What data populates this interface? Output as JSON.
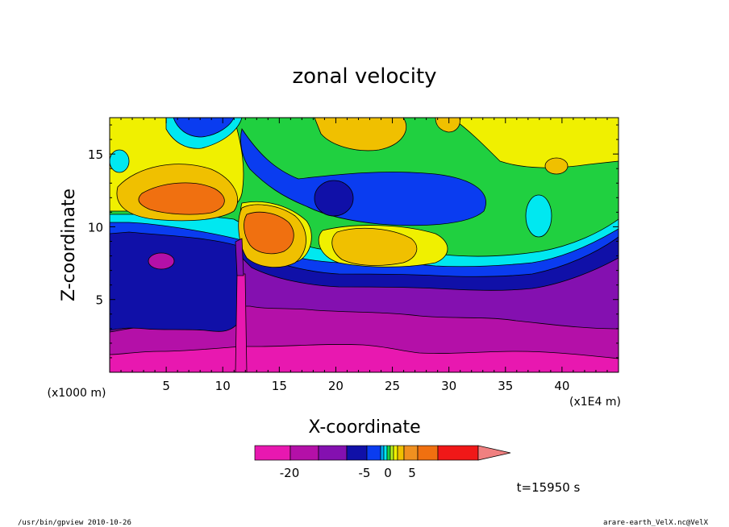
{
  "chart_data": {
    "type": "heatmap",
    "title": "zonal velocity",
    "xlabel": "X-coordinate",
    "ylabel": "Z-coordinate",
    "x_unit_label": "(x1E4 m)",
    "z_unit_label": "(x1000 m)",
    "xlim": [
      0,
      45
    ],
    "ylim": [
      0,
      17.5
    ],
    "x_ticks": [
      "5",
      "10",
      "15",
      "20",
      "25",
      "30",
      "35",
      "40"
    ],
    "x_tick_values": [
      5,
      10,
      15,
      20,
      25,
      30,
      35,
      40
    ],
    "y_ticks": [
      "5",
      "10",
      "15"
    ],
    "y_tick_values": [
      5,
      10,
      15
    ],
    "grid": false,
    "colorbar": {
      "colors": [
        "#e818b0",
        "#b410a8",
        "#8410b0",
        "#1010a8",
        "#0a3cf0",
        "#00a8f0",
        "#00e8f0",
        "#20d040",
        "#b8f020",
        "#f0f000",
        "#f0c000",
        "#f09020",
        "#f07010",
        "#f01818",
        "#f08080"
      ],
      "tick_labels": [
        "-20",
        "-5",
        "0",
        "5"
      ],
      "tick_values": [
        -20,
        -5,
        0,
        5
      ]
    },
    "levels": [
      {
        "name": "deep-pink",
        "level": -22,
        "color": "#e818b0"
      },
      {
        "name": "magenta",
        "level": -18,
        "color": "#b410a8"
      },
      {
        "name": "purple",
        "level": -14,
        "color": "#8410b0"
      },
      {
        "name": "dark-blue",
        "level": -10,
        "color": "#1010a8"
      },
      {
        "name": "blue",
        "level": -5,
        "color": "#0a3cf0"
      },
      {
        "name": "cyan",
        "level": -2,
        "color": "#00e8f0"
      },
      {
        "name": "green",
        "level": 0,
        "color": "#20d040"
      },
      {
        "name": "yellow",
        "level": 2,
        "color": "#f0f000"
      },
      {
        "name": "light-orange",
        "level": 4,
        "color": "#f0c000"
      },
      {
        "name": "orange",
        "level": 6,
        "color": "#f07010"
      }
    ]
  },
  "time_label": "t=15950 s",
  "footer": {
    "left": "/usr/bin/gpview   2010-10-26",
    "right": "arare-earth_VelX.nc@VelX"
  }
}
